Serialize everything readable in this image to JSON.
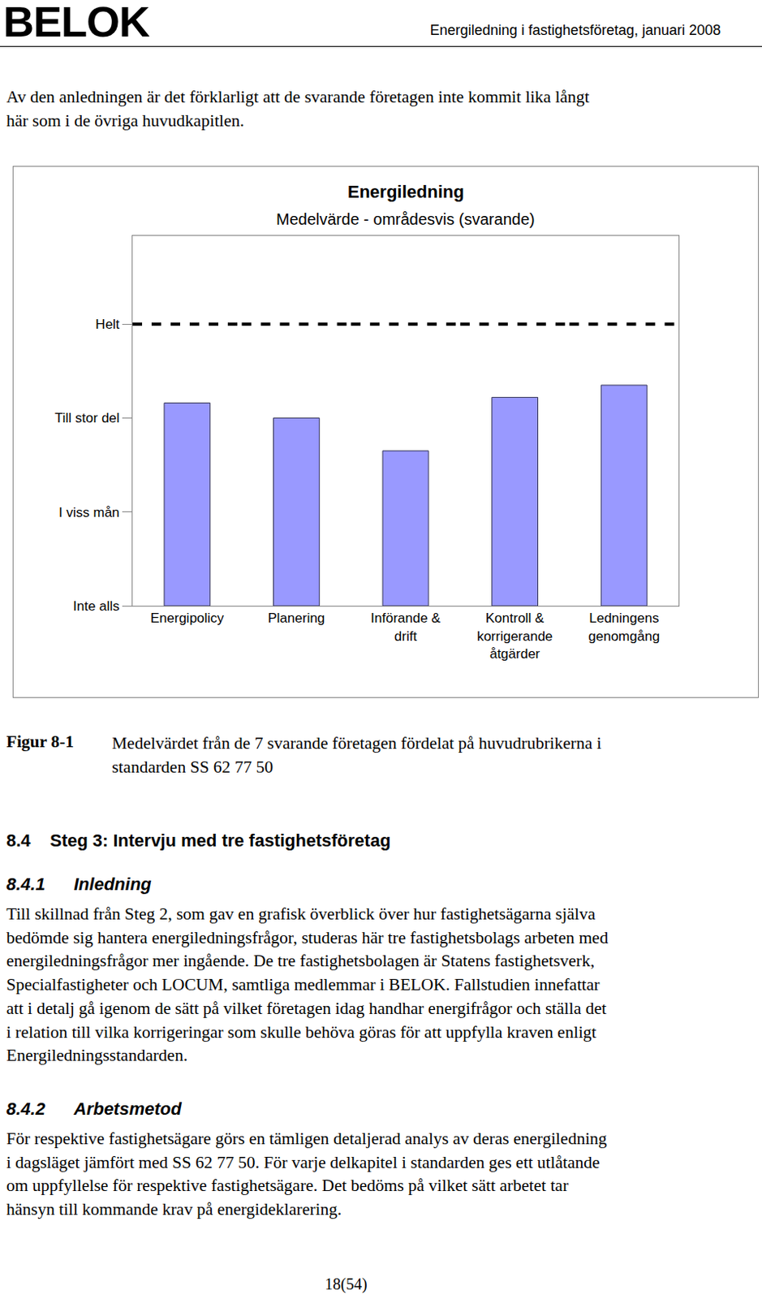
{
  "header": {
    "logo": "BELOK",
    "title": "Energiledning i fastighetsföretag, januari 2008"
  },
  "intro": {
    "lines": [
      "Av den anledningen är det förklarligt att de svarande företagen inte kommit lika långt",
      "här som i de övriga huvudkapitlen."
    ]
  },
  "chart_data": {
    "type": "bar",
    "title": "Energiledning",
    "subtitle": "Medelvärde - områdesvis (svarande)",
    "categories": [
      "Energipolicy",
      "Planering",
      "Införande &\ndrift",
      "Kontroll &\nkorrigerande\nåtgärder",
      "Ledningens\ngenomgång"
    ],
    "series": [
      {
        "type": "bar",
        "color": "#9999ff",
        "values": [
          2.16,
          2.0,
          1.65,
          2.22,
          2.35
        ]
      },
      {
        "type": "line",
        "line_style": "dashed",
        "color": "#000000",
        "values": [
          3,
          3,
          3,
          3,
          3
        ]
      }
    ],
    "ylim": [
      0,
      3.94
    ],
    "yticks": [
      {
        "value": 0,
        "label": "Inte alls"
      },
      {
        "value": 1,
        "label": "I viss mån"
      },
      {
        "value": 2,
        "label": "Till stor del"
      },
      {
        "value": 3,
        "label": "Helt"
      }
    ],
    "grid": false
  },
  "figure_caption": {
    "label": "Figur 8-1",
    "lines": [
      "Medelvärdet från de 7 svarande företagen fördelat på huvudrubrikerna i",
      "standarden SS 62 77 50"
    ]
  },
  "sections": [
    {
      "number": "8.4",
      "title": "Steg 3: Intervju med tre fastighetsföretag"
    },
    {
      "number": "8.4.1",
      "title": "Inledning",
      "lines": [
        "Till skillnad från Steg 2, som gav en grafisk överblick över hur fastighetsägarna själva",
        "bedömde sig hantera energiledningsfrågor, studeras här tre fastighetsbolags arbeten med",
        "energiledningsfrågor mer ingående. De tre fastighetsbolagen är Statens fastighetsverk,",
        "Specialfastigheter och LOCUM, samtliga medlemmar i BELOK. Fallstudien innefattar",
        "att i detalj gå igenom de sätt på vilket företagen idag handhar energifrågor och ställa det",
        "i relation till vilka korrigeringar som skulle behöva göras för att uppfylla kraven enligt",
        "Energiledningsstandarden."
      ]
    },
    {
      "number": "8.4.2",
      "title": "Arbetsmetod",
      "lines": [
        "För respektive fastighetsägare görs en tämligen detaljerad analys av deras energiledning",
        "i dagsläget jämfört med SS 62 77 50. För varje delkapitel i standarden ges ett utlåtande",
        "om uppfyllelse för respektive fastighetsägare. Det bedöms på vilket sätt arbetet tar",
        "hänsyn till kommande krav på energideklarering."
      ]
    }
  ],
  "page_number": "18(54)"
}
